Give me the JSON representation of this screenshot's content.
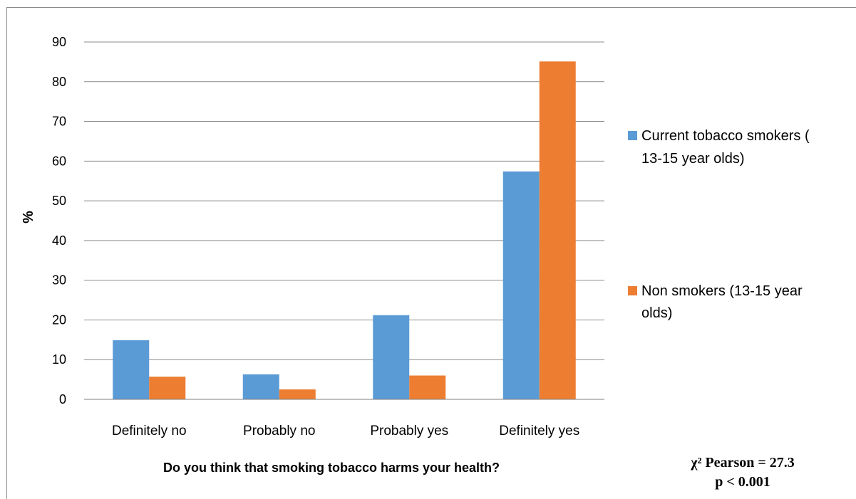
{
  "chart_data": {
    "type": "bar",
    "categories": [
      "Definitely no",
      "Probably no",
      "Probably yes",
      "Definitely yes"
    ],
    "series": [
      {
        "name": "Current tobacco smokers ( 13-15 year olds)",
        "color": "#5b9bd5",
        "values": [
          14.9,
          6.3,
          21.2,
          57.4
        ]
      },
      {
        "name": "Non smokers (13-15 year olds)",
        "color": "#ed7d31",
        "values": [
          5.7,
          2.5,
          6.0,
          85.1
        ]
      }
    ],
    "xlabel": "Do you think that smoking tobacco harms your health?",
    "ylabel": "%",
    "ylim": [
      0,
      90
    ],
    "yticks": [
      0,
      10,
      20,
      30,
      40,
      50,
      60,
      70,
      80,
      90
    ],
    "grid": true,
    "legend_position": "right",
    "legend_lines": [
      [
        "Current tobacco smokers (",
        "13-15 year olds)"
      ],
      [
        "Non smokers (13-15 year",
        "olds)"
      ]
    ],
    "annotation": {
      "line1": "χ² Pearson = 27.3",
      "line2": "p < 0.001"
    }
  }
}
